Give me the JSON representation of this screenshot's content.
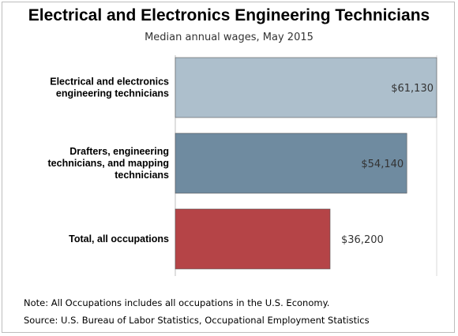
{
  "chart_data": {
    "type": "bar",
    "orientation": "horizontal",
    "title": "Electrical and Electronics Engineering Technicians",
    "subtitle": "Median annual wages, May 2015",
    "categories": [
      [
        "Electrical and electronics",
        "engineering technicians"
      ],
      [
        "Drafters, engineering",
        "technicians, and mapping",
        "technicians"
      ],
      [
        "Total, all occupations"
      ]
    ],
    "values": [
      61130,
      54140,
      36200
    ],
    "value_labels": [
      "$61,130",
      "$54,140",
      "$36,200"
    ],
    "colors": [
      "#adbfcc",
      "#6f8ba0",
      "#b54447"
    ],
    "xlim": [
      0,
      61130
    ],
    "grid": true
  },
  "notes": {
    "note": "Note: All Occupations includes all occupations in the U.S. Economy.",
    "source": "Source: U.S. Bureau of Labor Statistics, Occupational Employment Statistics"
  }
}
